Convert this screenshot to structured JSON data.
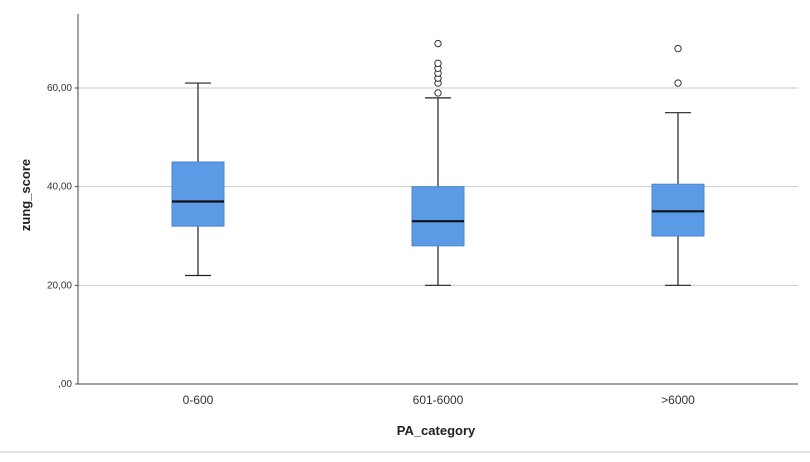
{
  "chart_data": {
    "type": "boxplot",
    "xlabel": "PA_category",
    "ylabel": "zung_score",
    "ylim": [
      0,
      75
    ],
    "yticks": [
      0,
      20,
      40,
      60
    ],
    "ytick_labels": [
      ",00",
      "20,00",
      "40,00",
      "60,00"
    ],
    "grid": "horizontal",
    "box_color": "#5B9BE6",
    "categories": [
      "0-600",
      "601-6000",
      ">6000"
    ],
    "boxes": [
      {
        "category": "0-600",
        "whisker_low": 22,
        "q1": 32,
        "median": 37,
        "q3": 45,
        "whisker_high": 61,
        "outliers": []
      },
      {
        "category": "601-6000",
        "whisker_low": 20,
        "q1": 28,
        "median": 33,
        "q3": 40,
        "whisker_high": 58,
        "outliers": [
          59,
          61,
          62,
          63,
          64,
          65,
          69
        ]
      },
      {
        "category": ">6000",
        "whisker_low": 20,
        "q1": 30,
        "median": 35,
        "q3": 40.5,
        "whisker_high": 55,
        "outliers": [
          61,
          68
        ]
      }
    ]
  }
}
